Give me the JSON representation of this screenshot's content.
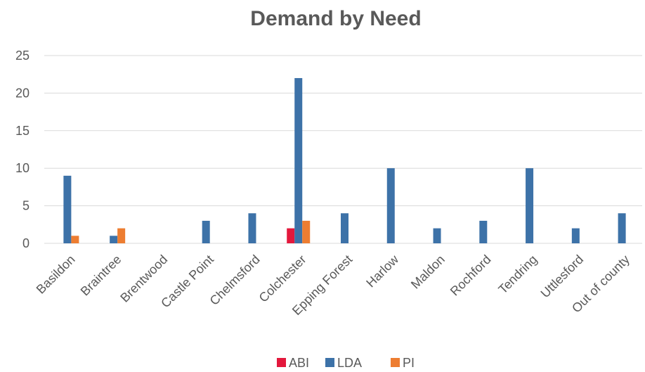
{
  "chart_data": {
    "type": "bar",
    "title": "Demand by Need",
    "xlabel": "",
    "ylabel": "",
    "ylim": [
      0,
      25
    ],
    "yticks": [
      0,
      5,
      10,
      15,
      20,
      25
    ],
    "grid": true,
    "legend_position": "bottom",
    "categories": [
      "Basildon",
      "Braintree",
      "Brentwood",
      "Castle Point",
      "Chelmsford",
      "Colchester",
      "Epping Forest",
      "Harlow",
      "Maldon",
      "Rochford",
      "Tendring",
      "Uttlesford",
      "Out of county"
    ],
    "series": [
      {
        "name": "ABI",
        "color": "#e3183c",
        "values": [
          0,
          0,
          0,
          0,
          0,
          2,
          0,
          0,
          0,
          0,
          0,
          0,
          0
        ]
      },
      {
        "name": "LDA",
        "color": "#3d72a8",
        "values": [
          9,
          1,
          0,
          3,
          4,
          22,
          4,
          10,
          2,
          3,
          10,
          2,
          4
        ]
      },
      {
        "name": "PI",
        "color": "#ed7d31",
        "values": [
          1,
          2,
          0,
          0,
          0,
          3,
          0,
          0,
          0,
          0,
          0,
          0,
          0
        ]
      }
    ]
  }
}
